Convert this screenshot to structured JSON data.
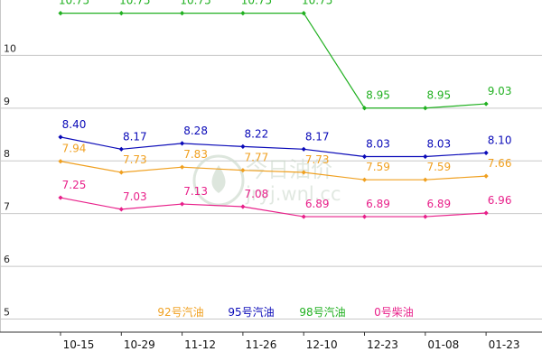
{
  "chart_data": {
    "type": "line",
    "title": "",
    "xlabel": "",
    "ylabel": "",
    "categories": [
      "10-15",
      "10-29",
      "11-12",
      "11-26",
      "12-10",
      "12-23",
      "01-08",
      "01-23"
    ],
    "y_ticks": [
      "5",
      "6",
      "7",
      "8",
      "9",
      "10"
    ],
    "ylim": [
      4.7,
      11.0
    ],
    "grid": "horizontal",
    "legend_position": "bottom",
    "series": [
      {
        "name": "92号汽油",
        "color": "#f0a020",
        "values": [
          7.94,
          7.73,
          7.83,
          7.77,
          7.73,
          7.59,
          7.59,
          7.66
        ]
      },
      {
        "name": "95号汽油",
        "color": "#0a0ab8",
        "values": [
          8.4,
          8.17,
          8.28,
          8.22,
          8.17,
          8.03,
          8.03,
          8.1
        ]
      },
      {
        "name": "98号汽油",
        "color": "#20b020",
        "values": [
          10.75,
          10.75,
          10.75,
          10.75,
          10.75,
          8.95,
          8.95,
          9.03
        ]
      },
      {
        "name": "0号柴油",
        "color": "#e8208a",
        "values": [
          7.25,
          7.03,
          7.13,
          7.08,
          6.89,
          6.89,
          6.89,
          6.96
        ]
      }
    ],
    "watermark": {
      "text": "今日油价",
      "url": "jryj.wnl.cc"
    }
  }
}
